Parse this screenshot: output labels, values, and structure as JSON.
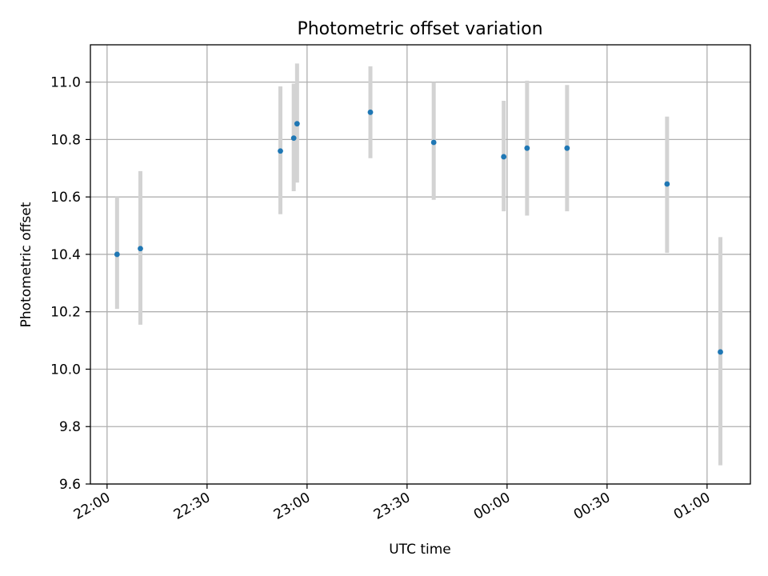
{
  "chart_data": {
    "type": "scatter",
    "title": "Photometric offset variation",
    "xlabel": "UTC time",
    "ylabel": "Photometric offset",
    "xlim": [
      "21:55",
      "01:13"
    ],
    "ylim": [
      9.6,
      11.13
    ],
    "x_ticks": [
      "22:00",
      "22:30",
      "23:00",
      "23:30",
      "00:00",
      "00:30",
      "01:00"
    ],
    "y_ticks": [
      "9.6",
      "9.8",
      "10.0",
      "10.2",
      "10.4",
      "10.6",
      "10.8",
      "11.0"
    ],
    "grid": true,
    "colors": {
      "point": "#1f77b4",
      "errorbar": "#d3d3d3",
      "grid": "#b0b0b0"
    },
    "points": [
      {
        "time": "22:03",
        "y": 10.4,
        "low": 10.21,
        "high": 10.6
      },
      {
        "time": "22:10",
        "y": 10.42,
        "low": 10.155,
        "high": 10.69
      },
      {
        "time": "22:52",
        "y": 10.76,
        "low": 10.54,
        "high": 10.985
      },
      {
        "time": "22:56",
        "y": 10.805,
        "low": 10.62,
        "high": 10.995
      },
      {
        "time": "22:57",
        "y": 10.855,
        "low": 10.65,
        "high": 11.065
      },
      {
        "time": "23:19",
        "y": 10.895,
        "low": 10.735,
        "high": 11.055
      },
      {
        "time": "23:38",
        "y": 10.79,
        "low": 10.59,
        "high": 11.0
      },
      {
        "time": "23:59",
        "y": 10.74,
        "low": 10.55,
        "high": 10.935
      },
      {
        "time": "00:06",
        "y": 10.77,
        "low": 10.535,
        "high": 11.005
      },
      {
        "time": "00:18",
        "y": 10.77,
        "low": 10.55,
        "high": 10.99
      },
      {
        "time": "00:48",
        "y": 10.645,
        "low": 10.405,
        "high": 10.88
      },
      {
        "time": "01:04",
        "y": 10.06,
        "low": 9.665,
        "high": 10.46
      }
    ]
  }
}
